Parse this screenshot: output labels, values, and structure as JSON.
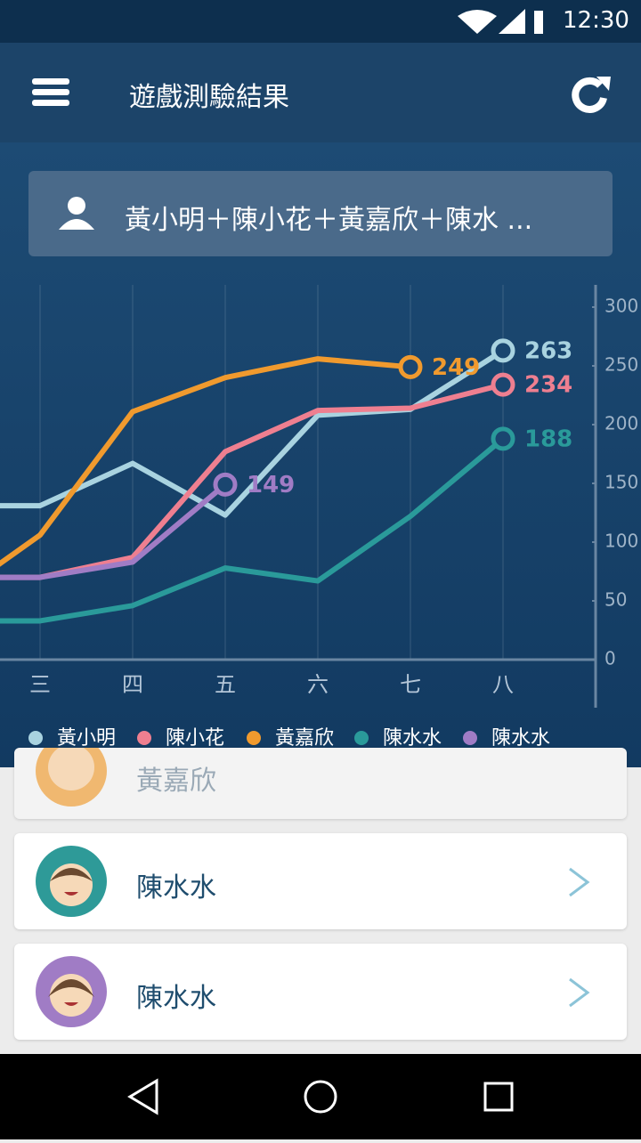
{
  "status_bar": {
    "time": "12:30"
  },
  "header": {
    "title": "遊戲測驗結果"
  },
  "selector": {
    "text": "黃小明＋陳小花＋黃嘉欣＋陳水 ..."
  },
  "chart_data": {
    "type": "line",
    "categories": [
      null,
      "三",
      "四",
      "五",
      "六",
      "七",
      "八"
    ],
    "ylim": [
      0,
      300
    ],
    "yticks": [
      0,
      50,
      100,
      150,
      200,
      250,
      300
    ],
    "series": [
      {
        "name": "黃小明",
        "color": "#a9d3e0",
        "values": [
          131,
          131,
          167,
          123,
          208,
          213,
          263
        ]
      },
      {
        "name": "陳小花",
        "color": "#ee7f90",
        "values": [
          70,
          70,
          87,
          177,
          212,
          214,
          234
        ]
      },
      {
        "name": "黃嘉欣",
        "color": "#f09a2e",
        "values": [
          50,
          106,
          211,
          240,
          256,
          249,
          null
        ]
      },
      {
        "name": "陳水水",
        "color": "#2a9a9a",
        "values": [
          33,
          33,
          46,
          78,
          67,
          122,
          188
        ]
      },
      {
        "name": "陳水水",
        "color": "#a07cc5",
        "values": [
          70,
          70,
          83,
          149,
          null,
          null,
          null
        ]
      }
    ]
  },
  "list": {
    "items": [
      {
        "name": "黃嘉欣"
      },
      {
        "name": "陳水水"
      },
      {
        "name": "陳水水"
      }
    ]
  }
}
